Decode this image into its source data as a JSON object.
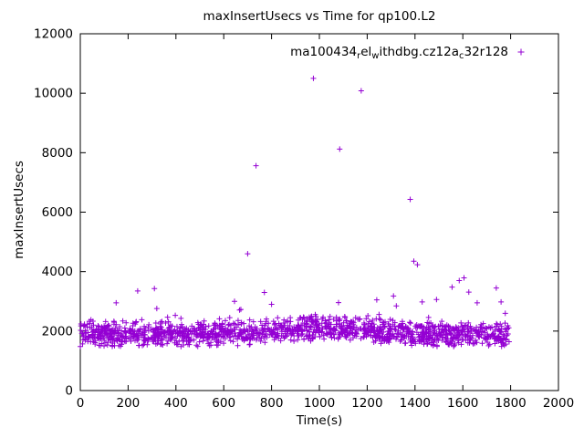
{
  "title": "maxInsertUsecs vs Time for qp100.L2",
  "xlabel": "Time(s)",
  "ylabel": "maxInsertUsecs",
  "legend": {
    "plain_text": "ma100434_rel_withdbg.cz12a_c32r128",
    "segments": [
      {
        "t": "ma100434",
        "sub": false
      },
      {
        "t": "r",
        "sub": true
      },
      {
        "t": "el",
        "sub": false
      },
      {
        "t": "w",
        "sub": true
      },
      {
        "t": "ithdbg.cz12a",
        "sub": false
      },
      {
        "t": "c",
        "sub": true
      },
      {
        "t": "32r128",
        "sub": false
      }
    ]
  },
  "chart_data": {
    "type": "scatter",
    "title": "maxInsertUsecs vs Time for qp100.L2",
    "xlabel": "Time(s)",
    "ylabel": "maxInsertUsecs",
    "xlim": [
      0,
      2000
    ],
    "ylim": [
      0,
      12000
    ],
    "xticks": [
      0,
      200,
      400,
      600,
      800,
      1000,
      1200,
      1400,
      1600,
      1800,
      2000
    ],
    "yticks": [
      0,
      2000,
      4000,
      6000,
      8000,
      10000,
      12000
    ],
    "grid": false,
    "legend_position": "top-right-inside",
    "series": [
      {
        "name": "ma100434_rel_withdbg.cz12a_c32r128",
        "color": "#9400D3",
        "marker": "plus",
        "marker_size": 6,
        "band": {
          "description": "dense baseline of ~1500 samples, one per second, 0-1800s, y mostly 1550-2700 usecs, slight bump near t=1000",
          "seed": 42,
          "n": 1500,
          "x_range": [
            0,
            1800
          ],
          "base_mean": 1880,
          "bump_center": 1000,
          "bump_width": 300,
          "bump_height": 220,
          "noise": 480,
          "spike_prob": 0.04,
          "spike_max": 600,
          "y_min": 1480
        },
        "outliers": [
          [
            150,
            2950
          ],
          [
            240,
            3350
          ],
          [
            310,
            3430
          ],
          [
            320,
            2760
          ],
          [
            645,
            3000
          ],
          [
            700,
            4600
          ],
          [
            735,
            7560
          ],
          [
            770,
            3300
          ],
          [
            800,
            2900
          ],
          [
            975,
            10500
          ],
          [
            1085,
            8120
          ],
          [
            1175,
            10080
          ],
          [
            1240,
            3050
          ],
          [
            1310,
            3180
          ],
          [
            1380,
            6430
          ],
          [
            1395,
            4350
          ],
          [
            1410,
            4230
          ],
          [
            1430,
            2980
          ],
          [
            1490,
            3060
          ],
          [
            1555,
            3480
          ],
          [
            1585,
            3700
          ],
          [
            1605,
            3790
          ],
          [
            1625,
            3310
          ],
          [
            1660,
            2950
          ],
          [
            1740,
            3450
          ],
          [
            1760,
            2980
          ]
        ]
      }
    ]
  },
  "layout_colors": {
    "axis": "#000000",
    "background": "#ffffff",
    "points": "#9400D3"
  }
}
